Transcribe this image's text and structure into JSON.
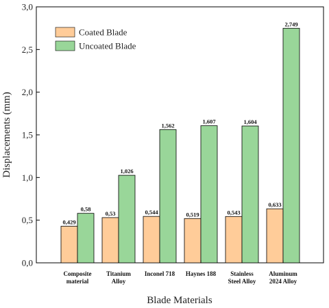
{
  "chart_data": {
    "type": "bar",
    "categories": [
      [
        "Composite",
        "material"
      ],
      [
        "Titanium",
        "Alloy"
      ],
      [
        "Inconel 718"
      ],
      [
        "Haynes 188"
      ],
      [
        "Stainless",
        "Steel Alloy"
      ],
      [
        "Aluminum",
        "2024 Alloy"
      ]
    ],
    "series": [
      {
        "name": "Coated Blade",
        "color": "#FFCC99",
        "values": [
          0.429,
          0.53,
          0.544,
          0.519,
          0.543,
          0.633
        ],
        "labels": [
          "0,429",
          "0,53",
          "0,544",
          "0,519",
          "0,543",
          "0,633"
        ]
      },
      {
        "name": "Uncoated Blade",
        "color": "#99D699",
        "values": [
          0.58,
          1.026,
          1.562,
          1.607,
          1.604,
          2.749
        ],
        "labels": [
          "0,58",
          "1,026",
          "1,562",
          "1,607",
          "1,604",
          "2,749"
        ]
      }
    ],
    "xlabel": "Blade Materials",
    "ylabel": "Displacements (mm)",
    "ylim": [
      0,
      3.0
    ],
    "yticks": [
      0,
      0.5,
      1.0,
      1.5,
      2.0,
      2.5,
      3.0
    ],
    "ytick_labels": [
      "0,0",
      "0,5",
      "1,0",
      "1,5",
      "2,0",
      "2,5",
      "3,0"
    ],
    "legend_position": "top-left",
    "grid": false
  }
}
